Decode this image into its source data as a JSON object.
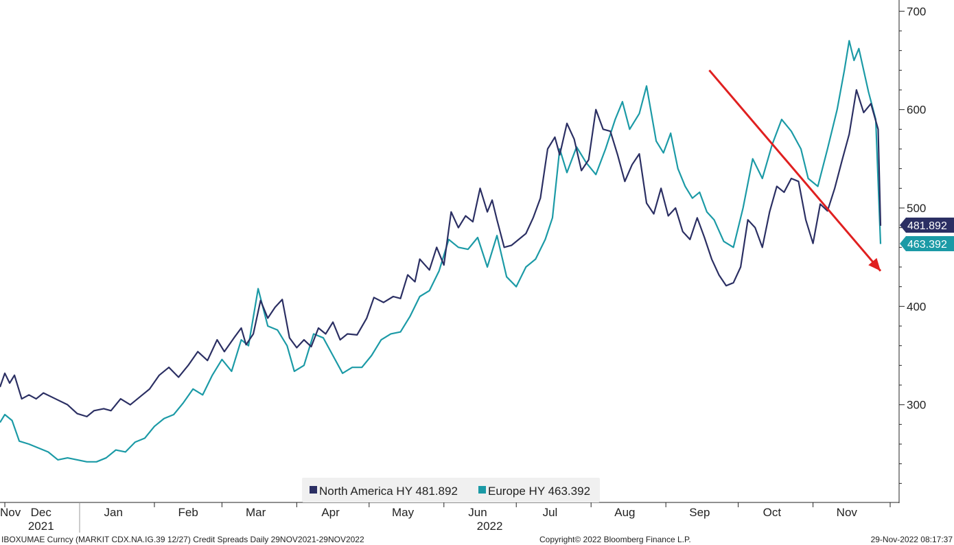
{
  "chart_data": {
    "type": "line",
    "title": "",
    "ylim": [
      200,
      710
    ],
    "y_axis_position": "right",
    "y_ticks": [
      300,
      400,
      500,
      600,
      700
    ],
    "grid": false,
    "legend_placement": "bottom-center",
    "x_start": "2021-11-29",
    "x_end": "2022-11-29",
    "x_month_labels": [
      {
        "label": "Nov",
        "date": "2021-11-29"
      },
      {
        "label": "Dec",
        "date": "2021-12-16"
      },
      {
        "label": "Jan",
        "date": "2022-01-15"
      },
      {
        "label": "Feb",
        "date": "2022-02-15"
      },
      {
        "label": "Mar",
        "date": "2022-03-15"
      },
      {
        "label": "Apr",
        "date": "2022-04-15"
      },
      {
        "label": "May",
        "date": "2022-05-15"
      },
      {
        "label": "Jun",
        "date": "2022-06-15"
      },
      {
        "label": "Jul",
        "date": "2022-07-15"
      },
      {
        "label": "Aug",
        "date": "2022-08-15"
      },
      {
        "label": "Sep",
        "date": "2022-09-15"
      },
      {
        "label": "Oct",
        "date": "2022-10-15"
      },
      {
        "label": "Nov",
        "date": "2022-11-15"
      }
    ],
    "x_year_labels": [
      {
        "label": "2021",
        "date": "2021-12-16"
      },
      {
        "label": "2022",
        "date": "2022-06-20"
      }
    ],
    "series": [
      {
        "name": "North America HY",
        "legend_label": "North America HY 481.892",
        "last_value_label": "481.892",
        "color": "#2b2f63",
        "points": [
          [
            "2021-11-29",
            318
          ],
          [
            "2021-12-01",
            332
          ],
          [
            "2021-12-03",
            322
          ],
          [
            "2021-12-05",
            330
          ],
          [
            "2021-12-08",
            306
          ],
          [
            "2021-12-11",
            310
          ],
          [
            "2021-12-14",
            306
          ],
          [
            "2021-12-17",
            312
          ],
          [
            "2021-12-22",
            306
          ],
          [
            "2021-12-27",
            300
          ],
          [
            "2021-12-31",
            291
          ],
          [
            "2022-01-04",
            288
          ],
          [
            "2022-01-07",
            294
          ],
          [
            "2022-01-11",
            296
          ],
          [
            "2022-01-14",
            294
          ],
          [
            "2022-01-18",
            306
          ],
          [
            "2022-01-22",
            300
          ],
          [
            "2022-01-26",
            308
          ],
          [
            "2022-01-30",
            316
          ],
          [
            "2022-02-03",
            330
          ],
          [
            "2022-02-07",
            338
          ],
          [
            "2022-02-11",
            328
          ],
          [
            "2022-02-15",
            340
          ],
          [
            "2022-02-19",
            354
          ],
          [
            "2022-02-23",
            345
          ],
          [
            "2022-02-27",
            366
          ],
          [
            "2022-03-02",
            354
          ],
          [
            "2022-03-06",
            368
          ],
          [
            "2022-03-09",
            378
          ],
          [
            "2022-03-11",
            361
          ],
          [
            "2022-03-14",
            372
          ],
          [
            "2022-03-17",
            406
          ],
          [
            "2022-03-20",
            388
          ],
          [
            "2022-03-23",
            399
          ],
          [
            "2022-03-26",
            407
          ],
          [
            "2022-03-29",
            368
          ],
          [
            "2022-04-01",
            358
          ],
          [
            "2022-04-04",
            366
          ],
          [
            "2022-04-07",
            359
          ],
          [
            "2022-04-10",
            378
          ],
          [
            "2022-04-13",
            372
          ],
          [
            "2022-04-16",
            384
          ],
          [
            "2022-04-19",
            366
          ],
          [
            "2022-04-22",
            372
          ],
          [
            "2022-04-26",
            371
          ],
          [
            "2022-04-30",
            388
          ],
          [
            "2022-05-03",
            409
          ],
          [
            "2022-05-07",
            404
          ],
          [
            "2022-05-11",
            410
          ],
          [
            "2022-05-14",
            408
          ],
          [
            "2022-05-17",
            432
          ],
          [
            "2022-05-20",
            425
          ],
          [
            "2022-05-22",
            448
          ],
          [
            "2022-05-26",
            437
          ],
          [
            "2022-05-29",
            460
          ],
          [
            "2022-06-01",
            442
          ],
          [
            "2022-06-04",
            496
          ],
          [
            "2022-06-07",
            480
          ],
          [
            "2022-06-10",
            492
          ],
          [
            "2022-06-13",
            486
          ],
          [
            "2022-06-16",
            520
          ],
          [
            "2022-06-19",
            496
          ],
          [
            "2022-06-21",
            508
          ],
          [
            "2022-06-23",
            488
          ],
          [
            "2022-06-26",
            460
          ],
          [
            "2022-06-29",
            462
          ],
          [
            "2022-07-02",
            468
          ],
          [
            "2022-07-05",
            474
          ],
          [
            "2022-07-08",
            490
          ],
          [
            "2022-07-11",
            510
          ],
          [
            "2022-07-14",
            560
          ],
          [
            "2022-07-17",
            572
          ],
          [
            "2022-07-19",
            554
          ],
          [
            "2022-07-22",
            586
          ],
          [
            "2022-07-25",
            570
          ],
          [
            "2022-07-28",
            538
          ],
          [
            "2022-07-31",
            549
          ],
          [
            "2022-08-03",
            600
          ],
          [
            "2022-08-06",
            580
          ],
          [
            "2022-08-09",
            578
          ],
          [
            "2022-08-12",
            554
          ],
          [
            "2022-08-15",
            527
          ],
          [
            "2022-08-18",
            544
          ],
          [
            "2022-08-21",
            555
          ],
          [
            "2022-08-24",
            505
          ],
          [
            "2022-08-27",
            494
          ],
          [
            "2022-08-30",
            520
          ],
          [
            "2022-09-02",
            492
          ],
          [
            "2022-09-05",
            500
          ],
          [
            "2022-09-08",
            476
          ],
          [
            "2022-09-11",
            468
          ],
          [
            "2022-09-14",
            490
          ],
          [
            "2022-09-17",
            470
          ],
          [
            "2022-09-20",
            448
          ],
          [
            "2022-09-23",
            432
          ],
          [
            "2022-09-26",
            421
          ],
          [
            "2022-09-29",
            424
          ],
          [
            "2022-10-02",
            440
          ],
          [
            "2022-10-05",
            488
          ],
          [
            "2022-10-08",
            480
          ],
          [
            "2022-10-11",
            460
          ],
          [
            "2022-10-14",
            496
          ],
          [
            "2022-10-17",
            522
          ],
          [
            "2022-10-20",
            516
          ],
          [
            "2022-10-23",
            530
          ],
          [
            "2022-10-26",
            527
          ],
          [
            "2022-10-29",
            488
          ],
          [
            "2022-11-01",
            464
          ],
          [
            "2022-11-04",
            504
          ],
          [
            "2022-11-07",
            497
          ],
          [
            "2022-11-10",
            520
          ],
          [
            "2022-11-13",
            548
          ],
          [
            "2022-11-16",
            575
          ],
          [
            "2022-11-19",
            620
          ],
          [
            "2022-11-22",
            597
          ],
          [
            "2022-11-25",
            606
          ],
          [
            "2022-11-28",
            580
          ],
          [
            "2022-11-29",
            481.892
          ]
        ]
      },
      {
        "name": "Europe HY",
        "legend_label": "Europe HY 463.392",
        "last_value_label": "463.392",
        "color": "#1b9aa6",
        "points": [
          [
            "2021-11-29",
            282
          ],
          [
            "2021-12-01",
            290
          ],
          [
            "2021-12-04",
            284
          ],
          [
            "2021-12-07",
            263
          ],
          [
            "2021-12-11",
            260
          ],
          [
            "2021-12-15",
            256
          ],
          [
            "2021-12-19",
            252
          ],
          [
            "2021-12-23",
            244
          ],
          [
            "2021-12-27",
            246
          ],
          [
            "2021-12-31",
            244
          ],
          [
            "2022-01-04",
            242
          ],
          [
            "2022-01-08",
            242
          ],
          [
            "2022-01-12",
            246
          ],
          [
            "2022-01-16",
            254
          ],
          [
            "2022-01-20",
            252
          ],
          [
            "2022-01-24",
            262
          ],
          [
            "2022-01-28",
            266
          ],
          [
            "2022-02-01",
            278
          ],
          [
            "2022-02-05",
            286
          ],
          [
            "2022-02-09",
            290
          ],
          [
            "2022-02-13",
            302
          ],
          [
            "2022-02-17",
            316
          ],
          [
            "2022-02-21",
            310
          ],
          [
            "2022-02-25",
            330
          ],
          [
            "2022-03-01",
            346
          ],
          [
            "2022-03-05",
            334
          ],
          [
            "2022-03-09",
            366
          ],
          [
            "2022-03-12",
            360
          ],
          [
            "2022-03-16",
            418
          ],
          [
            "2022-03-20",
            380
          ],
          [
            "2022-03-24",
            376
          ],
          [
            "2022-03-28",
            360
          ],
          [
            "2022-03-31",
            334
          ],
          [
            "2022-04-04",
            340
          ],
          [
            "2022-04-08",
            372
          ],
          [
            "2022-04-12",
            368
          ],
          [
            "2022-04-16",
            350
          ],
          [
            "2022-04-20",
            332
          ],
          [
            "2022-04-24",
            338
          ],
          [
            "2022-04-28",
            338
          ],
          [
            "2022-05-02",
            350
          ],
          [
            "2022-05-06",
            366
          ],
          [
            "2022-05-10",
            372
          ],
          [
            "2022-05-14",
            374
          ],
          [
            "2022-05-18",
            390
          ],
          [
            "2022-05-22",
            410
          ],
          [
            "2022-05-26",
            416
          ],
          [
            "2022-05-30",
            436
          ],
          [
            "2022-06-03",
            468
          ],
          [
            "2022-06-07",
            460
          ],
          [
            "2022-06-11",
            458
          ],
          [
            "2022-06-15",
            470
          ],
          [
            "2022-06-19",
            440
          ],
          [
            "2022-06-23",
            472
          ],
          [
            "2022-06-27",
            430
          ],
          [
            "2022-07-01",
            420
          ],
          [
            "2022-07-05",
            440
          ],
          [
            "2022-07-09",
            448
          ],
          [
            "2022-07-13",
            468
          ],
          [
            "2022-07-16",
            490
          ],
          [
            "2022-07-19",
            560
          ],
          [
            "2022-07-22",
            536
          ],
          [
            "2022-07-26",
            562
          ],
          [
            "2022-07-30",
            546
          ],
          [
            "2022-08-03",
            534
          ],
          [
            "2022-08-07",
            560
          ],
          [
            "2022-08-11",
            590
          ],
          [
            "2022-08-14",
            608
          ],
          [
            "2022-08-17",
            580
          ],
          [
            "2022-08-21",
            596
          ],
          [
            "2022-08-24",
            624
          ],
          [
            "2022-08-28",
            568
          ],
          [
            "2022-08-31",
            556
          ],
          [
            "2022-09-03",
            576
          ],
          [
            "2022-09-06",
            540
          ],
          [
            "2022-09-09",
            522
          ],
          [
            "2022-09-12",
            510
          ],
          [
            "2022-09-15",
            516
          ],
          [
            "2022-09-18",
            496
          ],
          [
            "2022-09-21",
            488
          ],
          [
            "2022-09-25",
            466
          ],
          [
            "2022-09-29",
            460
          ],
          [
            "2022-10-03",
            500
          ],
          [
            "2022-10-07",
            550
          ],
          [
            "2022-10-11",
            530
          ],
          [
            "2022-10-15",
            564
          ],
          [
            "2022-10-19",
            590
          ],
          [
            "2022-10-23",
            578
          ],
          [
            "2022-10-27",
            560
          ],
          [
            "2022-10-30",
            530
          ],
          [
            "2022-11-03",
            522
          ],
          [
            "2022-11-07",
            560
          ],
          [
            "2022-11-11",
            600
          ],
          [
            "2022-11-14",
            640
          ],
          [
            "2022-11-16",
            670
          ],
          [
            "2022-11-18",
            650
          ],
          [
            "2022-11-20",
            662
          ],
          [
            "2022-11-22",
            640
          ],
          [
            "2022-11-24",
            618
          ],
          [
            "2022-11-27",
            590
          ],
          [
            "2022-11-29",
            463.392
          ]
        ]
      }
    ],
    "annotations": [
      {
        "type": "arrow",
        "color": "#e02020",
        "from": {
          "date": "2022-09-19",
          "value": 640
        },
        "to": {
          "date": "2022-11-29",
          "value": 436
        }
      }
    ]
  },
  "footer": {
    "left": "IBOXUMAE Curncy (MARKIT CDX.NA.IG.39 12/27) Credit Spreads  Daily 29NOV2021-29NOV2022",
    "center": "Copyright© 2022 Bloomberg Finance L.P.",
    "right": "29-Nov-2022 08:17:37"
  },
  "colors": {
    "axis": "#222222",
    "legend_bg": "#f0f0f0"
  }
}
